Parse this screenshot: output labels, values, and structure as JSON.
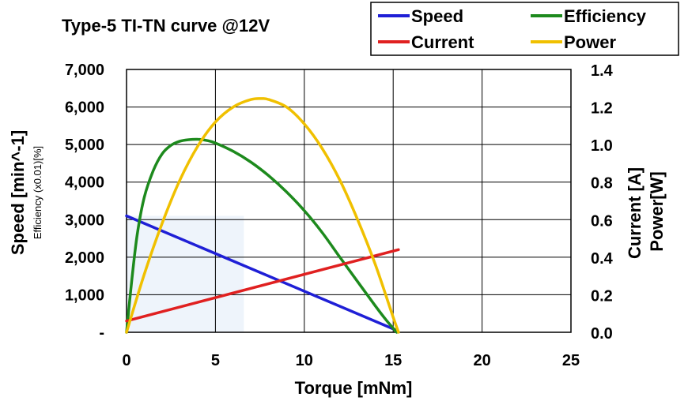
{
  "chart_data": {
    "type": "line",
    "title": "Type-5 TI-TN curve @12V",
    "xlabel": "Torque [mNm]",
    "ylabel_left": "Speed [min^-1]",
    "ylabel_left_sub": "Efficiency (x0.01)[%]",
    "ylabel_right_1": "Current [A]",
    "ylabel_right_2": "Power[W]",
    "xlim": [
      0,
      25
    ],
    "ylim_left": [
      0,
      7000
    ],
    "ylim_right": [
      0,
      1.4
    ],
    "x_ticks": [
      "0",
      "5",
      "10",
      "15",
      "20",
      "25"
    ],
    "x_tick_values": [
      0,
      5,
      10,
      15,
      20,
      25
    ],
    "y_left_ticks": [
      "-",
      "1,000",
      "2,000",
      "3,000",
      "4,000",
      "5,000",
      "6,000",
      "7,000"
    ],
    "y_left_tick_values": [
      0,
      1000,
      2000,
      3000,
      4000,
      5000,
      6000,
      7000
    ],
    "y_right_ticks": [
      "0.0",
      "0.2",
      "0.4",
      "0.6",
      "0.8",
      "1.0",
      "1.2",
      "1.4"
    ],
    "y_right_tick_values": [
      0,
      0.2,
      0.4,
      0.6,
      0.8,
      1.0,
      1.2,
      1.4
    ],
    "grid": true,
    "legend_position": "top-right",
    "shaded_region": {
      "x": [
        0,
        6.6
      ],
      "y_left": [
        0,
        3100
      ],
      "color": "#eef4fb"
    },
    "series": [
      {
        "name": "Speed",
        "axis": "left",
        "color": "#1f1fd6",
        "x": [
          0,
          15.2
        ],
        "y": [
          3100,
          50
        ]
      },
      {
        "name": "Efficiency",
        "axis": "left",
        "color": "#1d8a1d",
        "x": [
          0,
          0.3,
          0.6,
          1.0,
          1.5,
          2.0,
          2.5,
          3.0,
          3.5,
          4.0,
          4.5,
          5.0,
          6.0,
          7.0,
          8.0,
          9.0,
          10.0,
          11.0,
          12.0,
          13.0,
          14.0,
          14.6,
          15.2
        ],
        "y": [
          0,
          1400,
          2600,
          3600,
          4300,
          4750,
          4980,
          5090,
          5130,
          5140,
          5110,
          5040,
          4820,
          4530,
          4170,
          3740,
          3240,
          2660,
          2000,
          1350,
          700,
          330,
          0
        ]
      },
      {
        "name": "Current",
        "axis": "right",
        "color": "#e02020",
        "x": [
          0,
          15.3
        ],
        "y": [
          0.06,
          0.44
        ]
      },
      {
        "name": "Power",
        "axis": "right",
        "color": "#f0c000",
        "x": [
          0,
          1,
          2,
          3,
          4,
          5,
          6,
          7,
          7.6,
          8,
          9,
          10,
          11,
          12,
          13,
          14,
          15,
          15.3
        ],
        "y": [
          0,
          0.31,
          0.58,
          0.81,
          0.99,
          1.12,
          1.2,
          1.24,
          1.245,
          1.24,
          1.2,
          1.11,
          0.98,
          0.81,
          0.6,
          0.36,
          0.08,
          0
        ]
      }
    ]
  }
}
